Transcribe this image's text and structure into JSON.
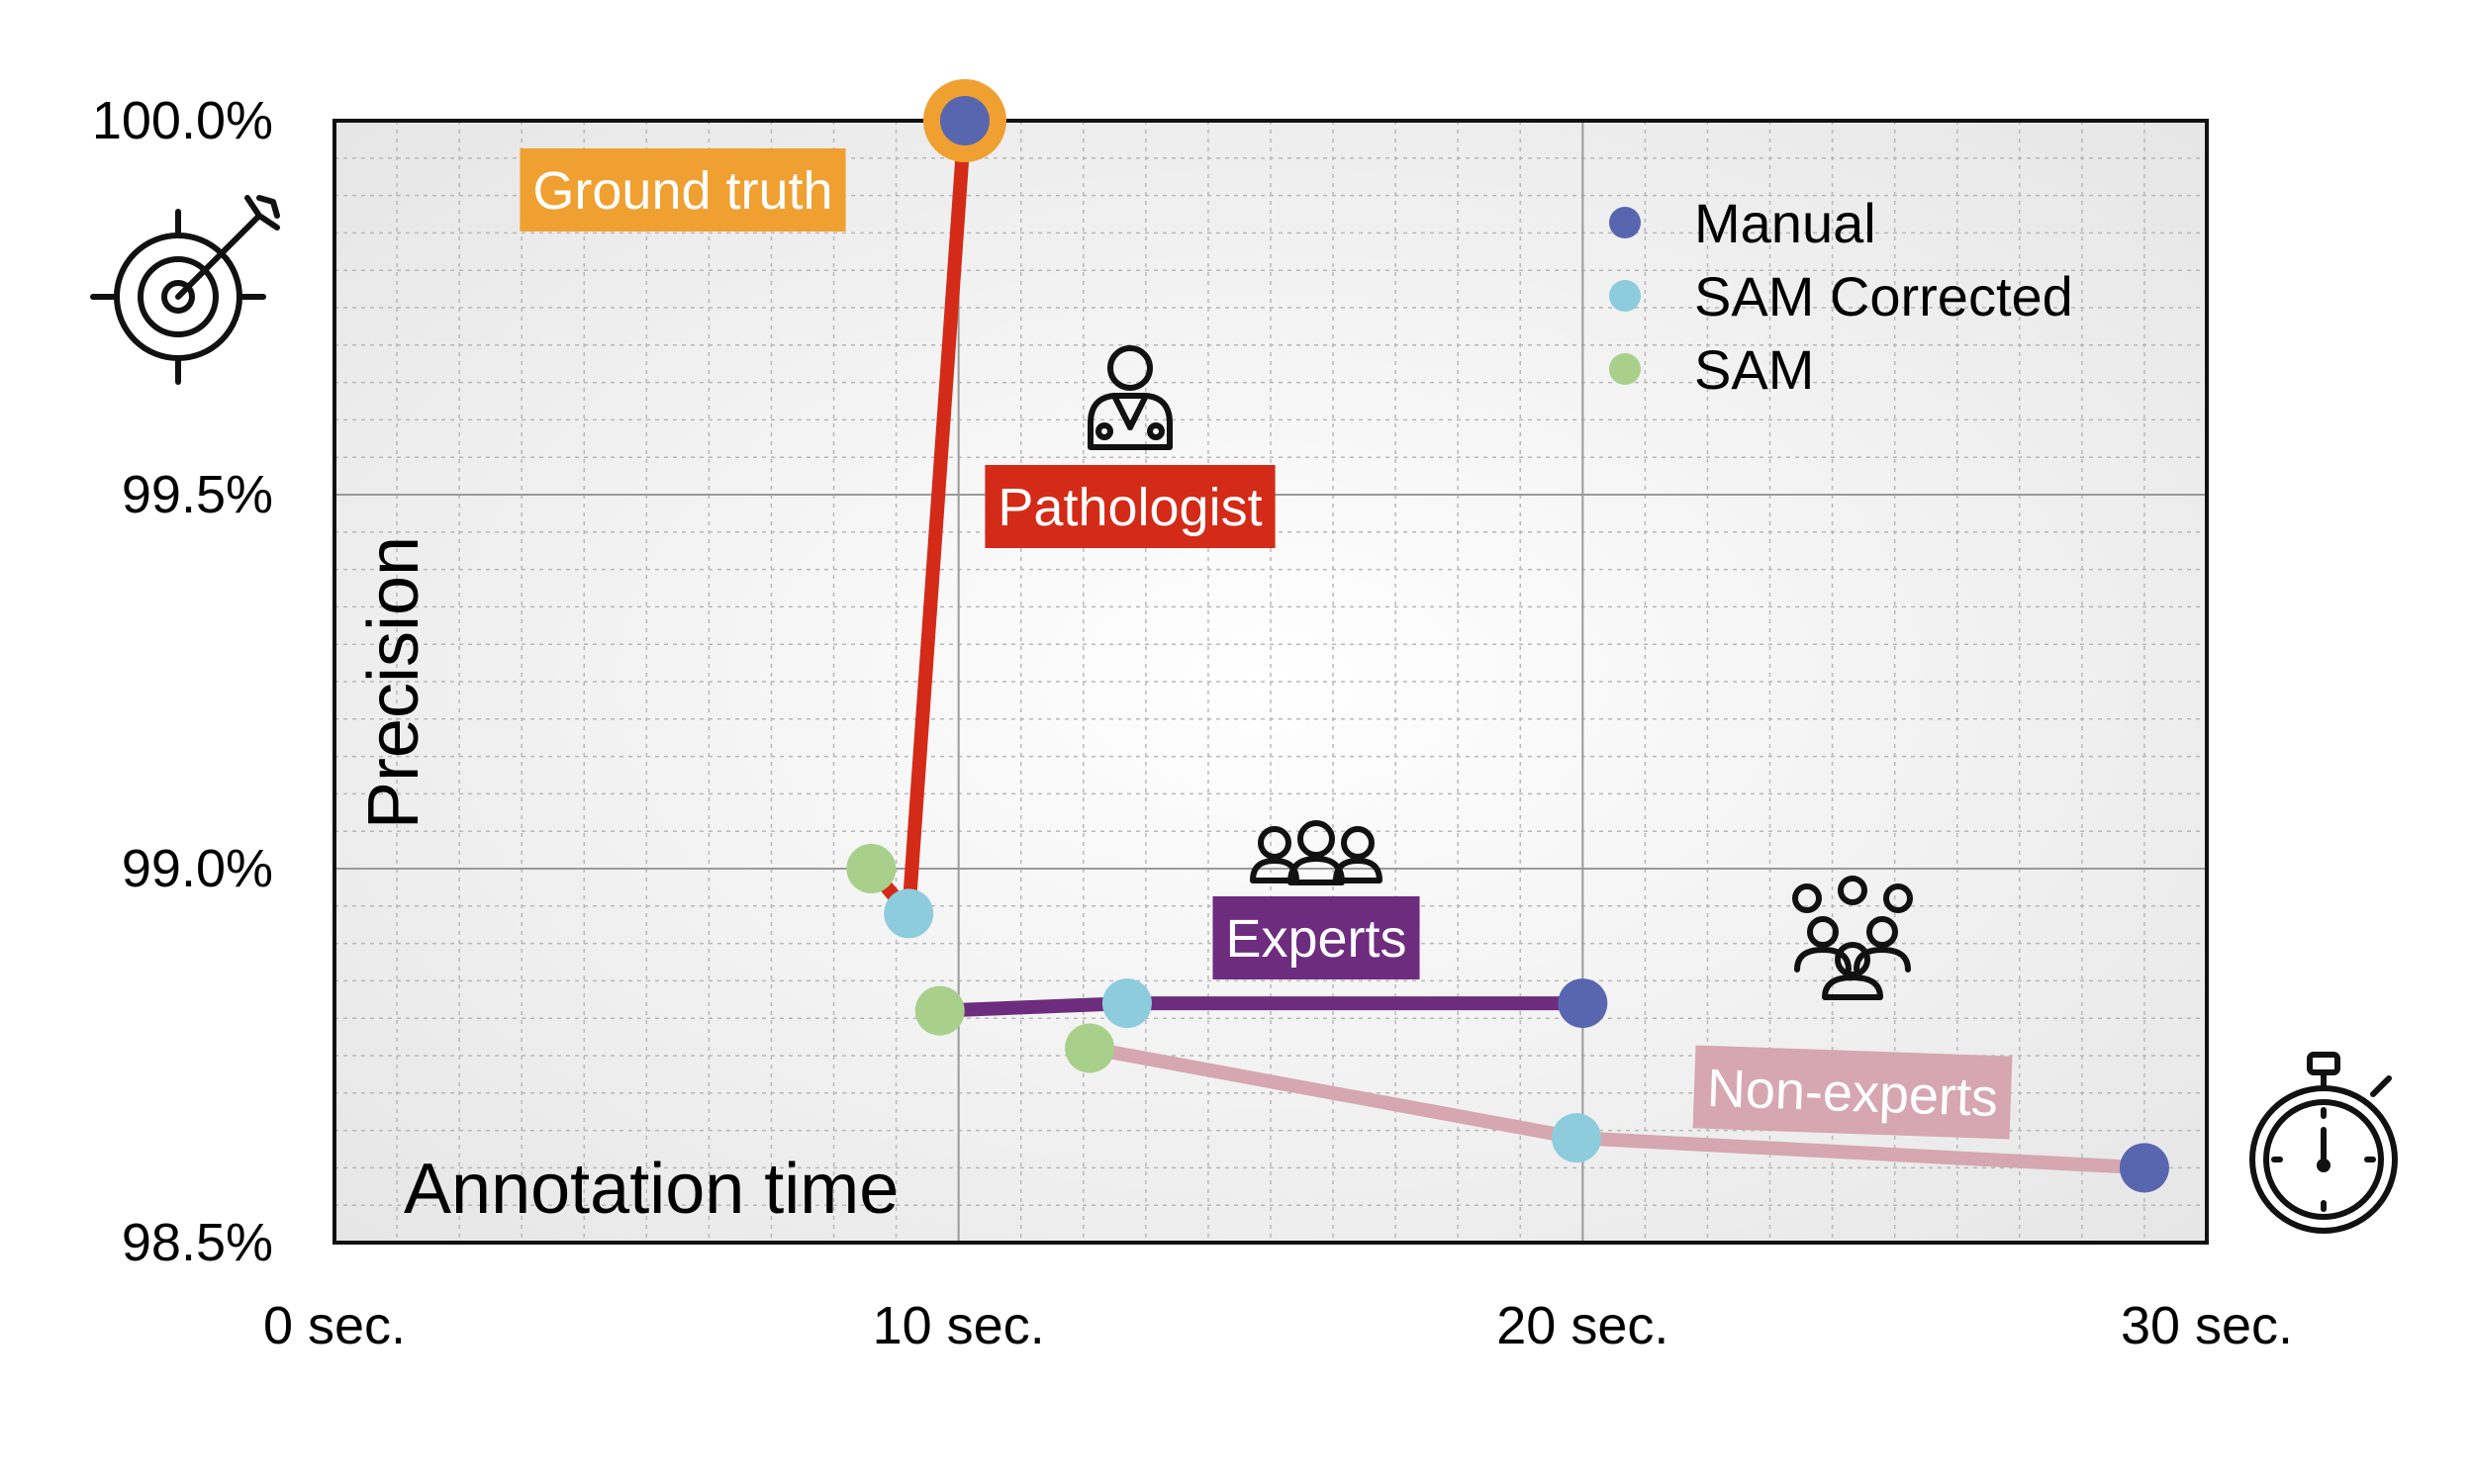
{
  "chart_data": {
    "type": "scatter",
    "xlabel": "Annotation time",
    "ylabel": "Precision",
    "xlim": [
      0,
      30
    ],
    "ylim": [
      98.5,
      100.0
    ],
    "x_ticks": [
      0,
      10,
      20,
      30
    ],
    "x_tick_labels": [
      "0 sec.",
      "10 sec.",
      "20 sec.",
      "30 sec."
    ],
    "y_ticks": [
      98.5,
      99.0,
      99.5,
      100.0
    ],
    "y_tick_labels": [
      "98.5%",
      "99.0%",
      "99.5%",
      "100.0%"
    ],
    "grid": true,
    "legend_position": "top-right",
    "marker_types": [
      {
        "key": "manual",
        "name": "Manual",
        "color": "#5866B0"
      },
      {
        "key": "sam_corrected",
        "name": "SAM Corrected",
        "color": "#8DCCDD"
      },
      {
        "key": "sam",
        "name": "SAM",
        "color": "#A8D08A"
      }
    ],
    "groups": [
      {
        "name": "Ground truth",
        "color": "#F0A030",
        "icon": "target-icon",
        "points": [
          {
            "type": "manual",
            "x": 10.1,
            "y": 100.0
          }
        ]
      },
      {
        "name": "Pathologist",
        "color": "#D42A18",
        "icon": "doctor-icon",
        "points": [
          {
            "type": "sam",
            "x": 8.6,
            "y": 99.0
          },
          {
            "type": "sam_corrected",
            "x": 9.2,
            "y": 98.94
          },
          {
            "type": "manual",
            "x": 10.1,
            "y": 100.0
          }
        ]
      },
      {
        "name": "Experts",
        "color": "#6E2C7E",
        "icon": "experts-group-icon",
        "points": [
          {
            "type": "sam",
            "x": 9.7,
            "y": 98.81
          },
          {
            "type": "sam_corrected",
            "x": 12.7,
            "y": 98.82
          },
          {
            "type": "manual",
            "x": 20.0,
            "y": 98.82
          }
        ]
      },
      {
        "name": "Non-experts",
        "color": "#D6A7B0",
        "icon": "crowd-icon",
        "points": [
          {
            "type": "sam",
            "x": 12.1,
            "y": 98.76
          },
          {
            "type": "sam_corrected",
            "x": 19.9,
            "y": 98.64
          },
          {
            "type": "manual",
            "x": 29.0,
            "y": 98.6
          }
        ]
      }
    ],
    "decorations": {
      "y_axis_icon": "target-arrow-icon",
      "x_axis_icon": "stopwatch-icon"
    }
  }
}
